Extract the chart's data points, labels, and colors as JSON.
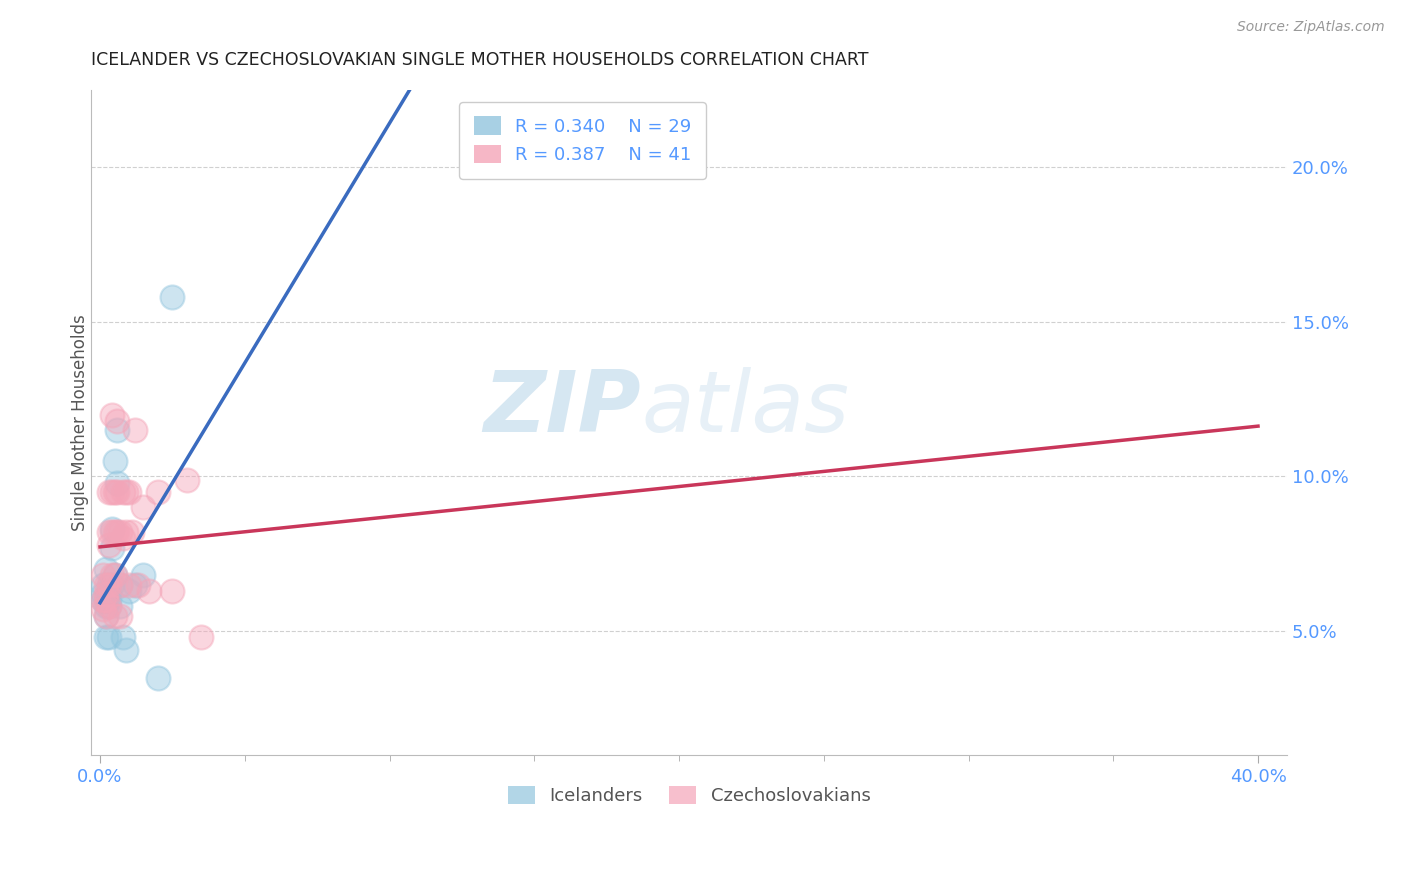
{
  "title": "ICELANDER VS CZECHOSLOVAKIAN SINGLE MOTHER HOUSEHOLDS CORRELATION CHART",
  "source": "Source: ZipAtlas.com",
  "ylabel": "Single Mother Households",
  "right_yticks": [
    "5.0%",
    "10.0%",
    "15.0%",
    "20.0%"
  ],
  "right_ytick_vals": [
    0.05,
    0.1,
    0.15,
    0.2
  ],
  "xlim": [
    -0.003,
    0.41
  ],
  "ylim": [
    0.01,
    0.225
  ],
  "color_blue": "#92c5de",
  "color_pink": "#f4a5b8",
  "trendline_blue": "#3a6bbf",
  "trendline_pink": "#c9365a",
  "watermark_zip": "ZIP",
  "watermark_atlas": "atlas",
  "background_color": "#ffffff",
  "grid_color": "#d0d0d0",
  "icelanders_x": [
    0.001,
    0.001,
    0.001,
    0.002,
    0.002,
    0.002,
    0.002,
    0.002,
    0.003,
    0.003,
    0.003,
    0.003,
    0.003,
    0.004,
    0.004,
    0.004,
    0.005,
    0.005,
    0.006,
    0.006,
    0.007,
    0.007,
    0.008,
    0.009,
    0.01,
    0.012,
    0.015,
    0.02,
    0.025
  ],
  "icelanders_y": [
    0.065,
    0.062,
    0.06,
    0.07,
    0.06,
    0.058,
    0.055,
    0.048,
    0.065,
    0.063,
    0.06,
    0.058,
    0.048,
    0.083,
    0.077,
    0.065,
    0.105,
    0.068,
    0.115,
    0.098,
    0.065,
    0.058,
    0.048,
    0.044,
    0.063,
    0.065,
    0.068,
    0.035,
    0.158
  ],
  "czechoslovakians_x": [
    0.001,
    0.001,
    0.001,
    0.002,
    0.002,
    0.002,
    0.002,
    0.003,
    0.003,
    0.003,
    0.003,
    0.003,
    0.004,
    0.004,
    0.004,
    0.004,
    0.005,
    0.005,
    0.005,
    0.005,
    0.006,
    0.006,
    0.006,
    0.007,
    0.007,
    0.007,
    0.008,
    0.008,
    0.009,
    0.009,
    0.01,
    0.01,
    0.011,
    0.012,
    0.013,
    0.015,
    0.017,
    0.02,
    0.025,
    0.03,
    0.035
  ],
  "czechoslovakians_y": [
    0.068,
    0.06,
    0.057,
    0.065,
    0.062,
    0.06,
    0.055,
    0.095,
    0.082,
    0.078,
    0.065,
    0.058,
    0.12,
    0.095,
    0.082,
    0.068,
    0.095,
    0.082,
    0.068,
    0.055,
    0.118,
    0.095,
    0.082,
    0.082,
    0.065,
    0.055,
    0.095,
    0.08,
    0.095,
    0.082,
    0.095,
    0.065,
    0.082,
    0.115,
    0.065,
    0.09,
    0.063,
    0.095,
    0.063,
    0.099,
    0.048
  ],
  "xtick_major_vals": [
    0.0,
    0.4
  ],
  "xtick_major_labels": [
    "0.0%",
    "40.0%"
  ],
  "xtick_minor_vals": [
    0.05,
    0.1,
    0.15,
    0.2,
    0.25,
    0.3,
    0.35
  ]
}
